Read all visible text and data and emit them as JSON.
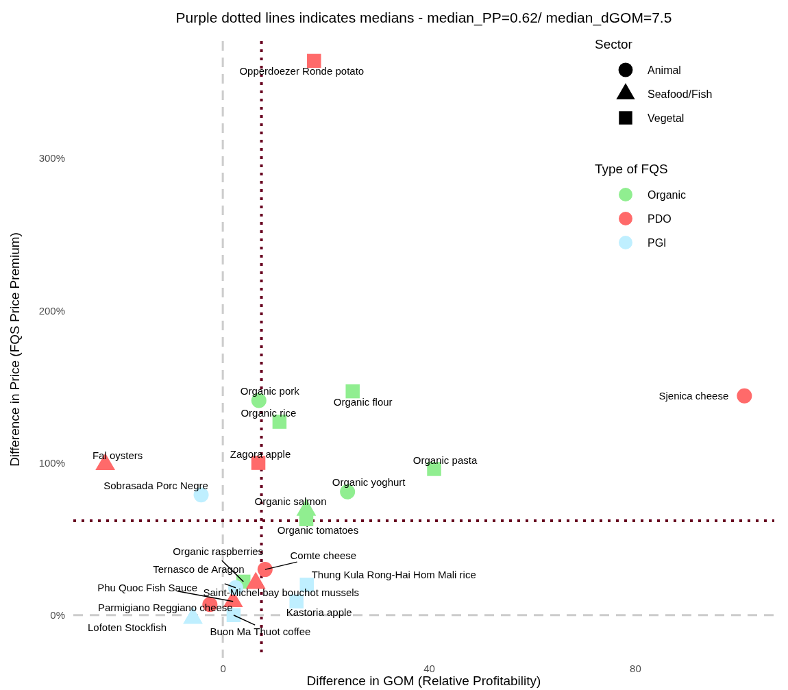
{
  "chart_data": {
    "type": "scatter",
    "title": "Purple dotted lines indicates medians - median_PP=0.62/ median_dGOM=7.5",
    "xlabel": "Difference in GOM (Relative Profitability)",
    "ylabel": "Difference in Price (FQS Price Premium)",
    "xlim": [
      -29,
      107
    ],
    "xticks": [
      0,
      40,
      80
    ],
    "ylim": [
      -0.28,
      3.77
    ],
    "yticks": [
      {
        "value": 0,
        "label": "0%"
      },
      {
        "value": 1,
        "label": "100%"
      },
      {
        "value": 2,
        "label": "200%"
      },
      {
        "value": 3,
        "label": "300%"
      }
    ],
    "grid": false,
    "legend": "top right",
    "legend_title": "Type of FQS",
    "series": [
      {
        "name": "Organic",
        "color": "#90ee90",
        "marker": "circle",
        "x": [
          7.0,
          24.2
        ],
        "values": [
          1.41,
          0.81
        ]
      },
      {
        "color": "#90ee90",
        "marker": "triangle",
        "x": [
          16.2
        ],
        "values": [
          0.69
        ]
      },
      {
        "color": "#90ee90",
        "marker": "square",
        "x": [
          25.2,
          11.0,
          41.0,
          16.2,
          4.0
        ],
        "values": [
          1.47,
          1.27,
          0.96,
          0.63,
          0.22
        ]
      },
      {
        "name": "PDO",
        "color": "#ff6a6a",
        "marker": "circle",
        "x": [
          101.2,
          8.2,
          -2.5
        ],
        "values": [
          1.44,
          0.3,
          0.07
        ]
      },
      {
        "color": "#ff6a6a",
        "marker": "triangle",
        "x": [
          -22.8,
          6.4,
          2.0
        ],
        "values": [
          0.99,
          0.21,
          0.09
        ]
      },
      {
        "color": "#ff6a6a",
        "marker": "square",
        "x": [
          17.7,
          6.9
        ],
        "values": [
          3.64,
          1.0
        ]
      },
      {
        "name": "PGI",
        "color": "#bfefff",
        "marker": "circle",
        "x": [
          -4.2,
          2.5
        ],
        "values": [
          0.79,
          0.18
        ]
      },
      {
        "color": "#bfefff",
        "marker": "triangle",
        "x": [
          -5.8
        ],
        "values": [
          -0.02
        ]
      },
      {
        "color": "#bfefff",
        "marker": "square",
        "x": [
          2.1,
          14.3,
          16.3
        ],
        "values": [
          0.0,
          0.09,
          0.2
        ]
      }
    ],
    "ref_lines": [
      {
        "axis": "x",
        "value": 0,
        "color": "#cccccc",
        "line_style": "dashed"
      },
      {
        "axis": "y",
        "value": 0,
        "color": "#cccccc",
        "line_style": "dashed"
      },
      {
        "axis": "x",
        "value": 7.5,
        "color": "#67001f",
        "line_style": "dotted"
      },
      {
        "axis": "y",
        "value": 0.62,
        "color": "#67001f",
        "line_style": "dotted"
      }
    ],
    "annotations": [
      {
        "text": "Opperdoezer Ronde potato",
        "x": 17.7,
        "y": 3.64
      },
      {
        "text": "Sjenica cheese",
        "x": 101.2,
        "y": 1.44
      },
      {
        "text": "Organic pork",
        "x": 7.0,
        "y": 1.41
      },
      {
        "text": "Organic flour",
        "x": 25.2,
        "y": 1.47
      },
      {
        "text": "Organic rice",
        "x": 11.0,
        "y": 1.27
      },
      {
        "text": "Fal oysters",
        "x": -22.8,
        "y": 0.99
      },
      {
        "text": "Zagora apple",
        "x": 6.9,
        "y": 1.0
      },
      {
        "text": "Organic pasta",
        "x": 41.0,
        "y": 0.96
      },
      {
        "text": "Organic yoghurt",
        "x": 24.2,
        "y": 0.81
      },
      {
        "text": "Sobrasada Porc Negre",
        "x": -4.2,
        "y": 0.79
      },
      {
        "text": "Organic salmon",
        "x": 16.2,
        "y": 0.69
      },
      {
        "text": "Organic tomatoes",
        "x": 16.2,
        "y": 0.63
      },
      {
        "text": "Comte cheese",
        "x": 8.2,
        "y": 0.3
      },
      {
        "text": "Organic raspberries",
        "x": 4.0,
        "y": 0.22
      },
      {
        "text": "Ternasco de Aragon",
        "x": 2.5,
        "y": 0.18
      },
      {
        "text": "Saint-Michel bay bouchot mussels",
        "x": 6.4,
        "y": 0.21
      },
      {
        "text": "Phu Quoc Fish Sauce",
        "x": 2.0,
        "y": 0.09
      },
      {
        "text": "Parmigiano Reggiano cheese",
        "x": -2.5,
        "y": 0.07
      },
      {
        "text": "Lofoten Stockfish",
        "x": -5.8,
        "y": -0.02
      },
      {
        "text": "Buon Ma Thuot coffee",
        "x": 2.1,
        "y": 0.0
      },
      {
        "text": "Kastoria apple",
        "x": 14.3,
        "y": 0.09
      },
      {
        "text": "Thung Kula Rong-Hai Hom Mali rice",
        "x": 16.3,
        "y": 0.2
      },
      "Sector",
      "Animal",
      "Seafood/Fish",
      "Vegetal"
    ]
  }
}
